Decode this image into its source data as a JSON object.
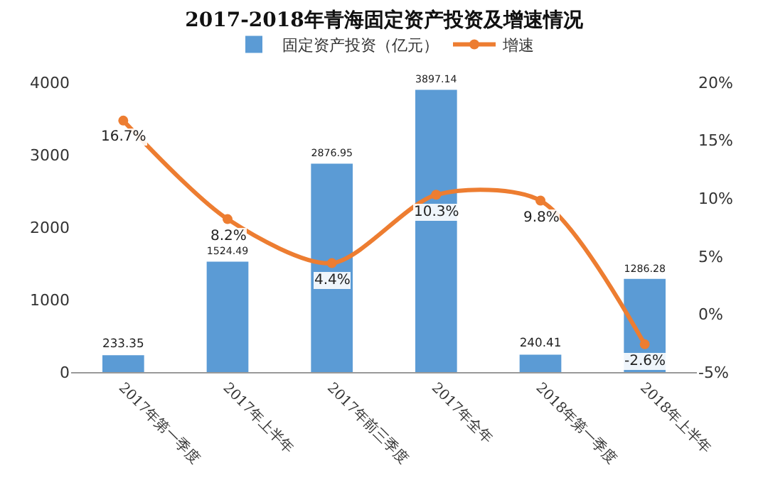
{
  "chart_data": {
    "type": "bar",
    "title": "2017-2018年青海固定资产投资及增速情况",
    "categories": [
      "2017年第一季度",
      "2017年上半年",
      "2017年前三季度",
      "2017年全年",
      "2018年第一季度",
      "2018年上半年"
    ],
    "series": [
      {
        "name": "固定资产投资（亿元）",
        "color": "#5b9bd5",
        "values": [
          233.35,
          1524.49,
          2876.95,
          3897.14,
          240.41,
          1286.28
        ],
        "value_labels": [
          "233.35",
          "1524.49",
          "2876.95",
          "3897.14",
          "240.41",
          "1286.28"
        ]
      },
      {
        "name": "增速",
        "type": "line",
        "axis": "y2",
        "color": "#ed7d31",
        "values": [
          16.7,
          8.2,
          4.4,
          10.3,
          9.8,
          -2.6
        ],
        "value_labels": [
          "16.7%",
          "8.2%",
          "4.4%",
          "10.3%",
          "9.8%",
          "-2.6%"
        ]
      }
    ],
    "ylim": [
      0,
      4000
    ],
    "yticks": [
      0,
      1000,
      2000,
      3000,
      4000
    ],
    "y2lim": [
      -5,
      20
    ],
    "y2ticks": [
      {
        "value": -5,
        "label": "-5%"
      },
      {
        "value": 0,
        "label": "0%"
      },
      {
        "value": 5,
        "label": "5%"
      },
      {
        "value": 10,
        "label": "10%"
      },
      {
        "value": 15,
        "label": "15%"
      },
      {
        "value": 20,
        "label": "20%"
      }
    ],
    "grid": false,
    "legend": "top",
    "marker": "circle"
  }
}
